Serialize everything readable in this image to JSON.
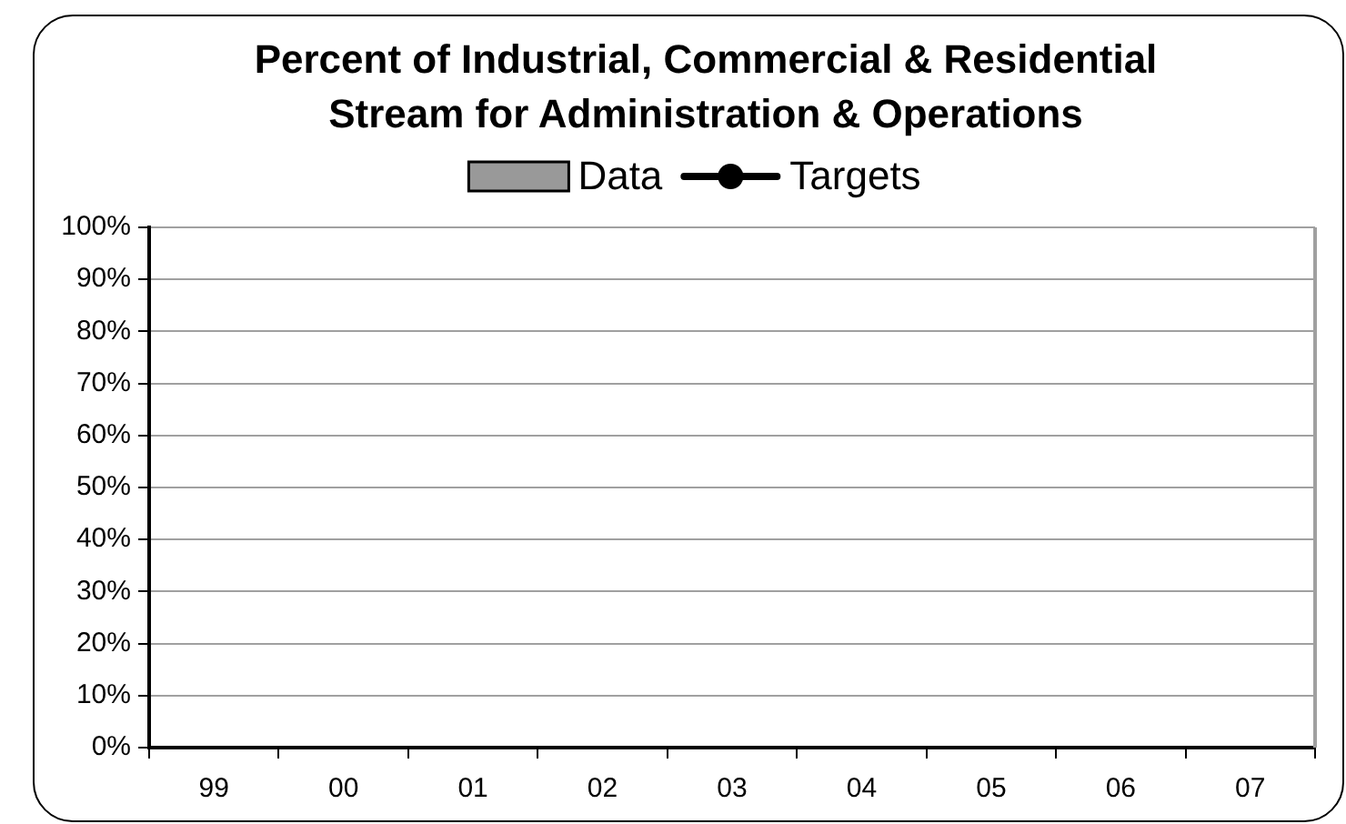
{
  "chart_data": {
    "type": "bar",
    "title": "Percent of Industrial, Commercial & Residential Stream for Administration & Operations",
    "categories": [
      "99",
      "00",
      "01",
      "02",
      "03",
      "04",
      "05",
      "06",
      "07"
    ],
    "series": [
      {
        "name": "Data",
        "color": "#999999",
        "values": [
          null,
          null,
          null,
          null,
          null,
          null,
          null,
          null,
          null
        ]
      },
      {
        "name": "Targets",
        "type": "line",
        "color": "#000000",
        "values": [
          null,
          null,
          null,
          null,
          null,
          null,
          null,
          null,
          null
        ]
      }
    ],
    "ylim": [
      0,
      100
    ],
    "yticks": [
      {
        "value": 0,
        "label": "0%"
      },
      {
        "value": 10,
        "label": "10%"
      },
      {
        "value": 20,
        "label": "20%"
      },
      {
        "value": 30,
        "label": "30%"
      },
      {
        "value": 40,
        "label": "40%"
      },
      {
        "value": 50,
        "label": "50%"
      },
      {
        "value": 60,
        "label": "60%"
      },
      {
        "value": 70,
        "label": "70%"
      },
      {
        "value": 80,
        "label": "80%"
      },
      {
        "value": 90,
        "label": "90%"
      },
      {
        "value": 100,
        "label": "100%"
      }
    ],
    "grid": "y",
    "legend": "top",
    "marker": "circle"
  }
}
